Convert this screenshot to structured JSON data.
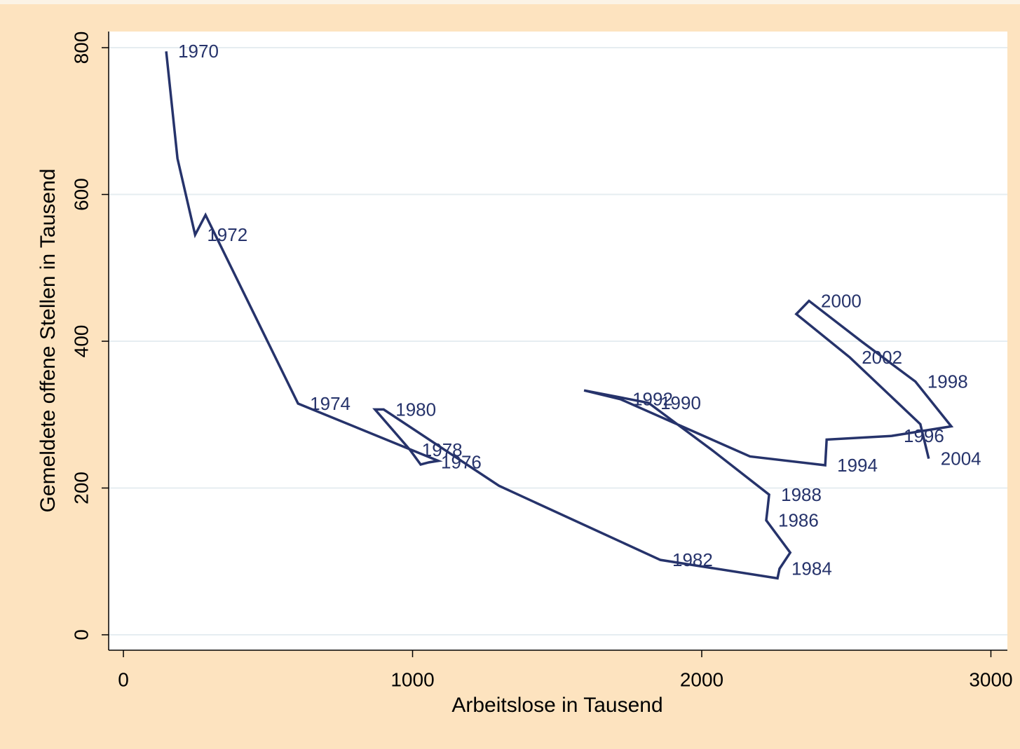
{
  "chart_data": {
    "type": "line",
    "xlabel": "Arbeitslose in Tausend",
    "ylabel": "Gemeldete offene Stellen in Tausend",
    "x": [
      148,
      187,
      248,
      284,
      604,
      1089,
      1057,
      1028,
      991,
      870,
      900,
      1299,
      1857,
      2262,
      2269,
      2306,
      2223,
      2228,
      2233,
      2038,
      1816,
      1593,
      1719,
      2167,
      2427,
      2432,
      2657,
      2863,
      2739,
      2555,
      2371,
      2327,
      2512,
      2756,
      2785
    ],
    "values": [
      795,
      649,
      545,
      572,
      315,
      237,
      235,
      232,
      252,
      307,
      307,
      203,
      102,
      77,
      90,
      112,
      156,
      173,
      191,
      251,
      316,
      333,
      321,
      243,
      231,
      266,
      271,
      284,
      345,
      399,
      455,
      437,
      378,
      287,
      240
    ],
    "point_labels": [
      "1970",
      null,
      "1972",
      null,
      "1974",
      null,
      "1976",
      null,
      "1978",
      null,
      "1980",
      null,
      "1982",
      null,
      "1984",
      null,
      "1986",
      null,
      "1988",
      null,
      "1990",
      null,
      "1992",
      null,
      "1994",
      null,
      "1996",
      null,
      "1998",
      null,
      "2000",
      null,
      "2002",
      null,
      "2004"
    ],
    "color": "#26336b",
    "xlim": [
      -51,
      3057
    ],
    "ylim": [
      -21,
      822
    ],
    "xticks": [
      0,
      1000,
      2000,
      3000
    ],
    "yticks": [
      0,
      200,
      400,
      600,
      800
    ],
    "grid": true
  }
}
